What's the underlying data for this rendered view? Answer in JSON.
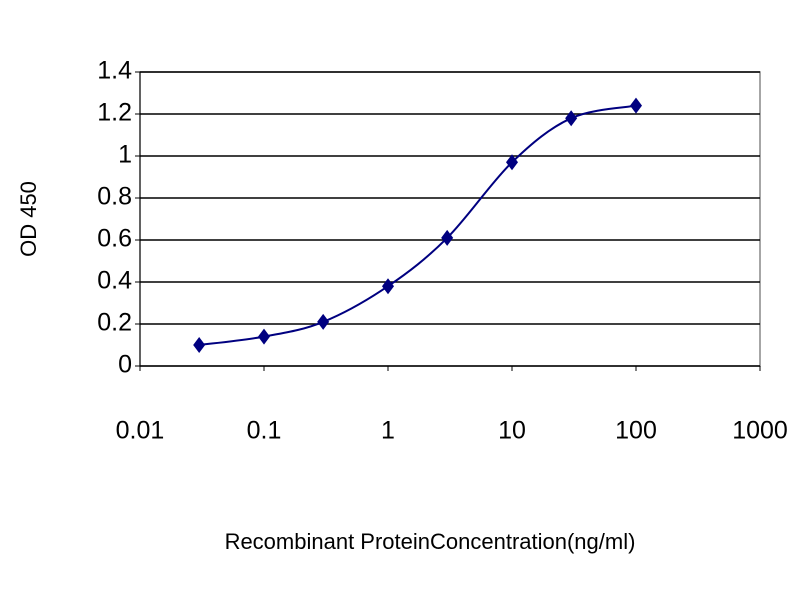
{
  "chart_data": {
    "type": "line",
    "x_label": "Recombinant ProteinConcentration(ng/ml)",
    "y_label": "OD 450",
    "x": [
      0.03,
      0.1,
      0.3,
      1,
      3,
      10,
      30,
      100
    ],
    "series": [
      {
        "color": "#000080",
        "values": [
          0.1,
          0.14,
          0.21,
          0.38,
          0.61,
          0.97,
          1.18,
          1.24
        ]
      }
    ],
    "xlim": [
      0.01,
      1000
    ],
    "xticks": [
      0.01,
      0.1,
      1,
      10,
      100,
      1000
    ],
    "ylim": [
      0,
      1.4
    ],
    "yticks": [
      0,
      0.2,
      0.4,
      0.6,
      0.8,
      1,
      1.2,
      1.4
    ],
    "log_x": true,
    "grid": true
  }
}
